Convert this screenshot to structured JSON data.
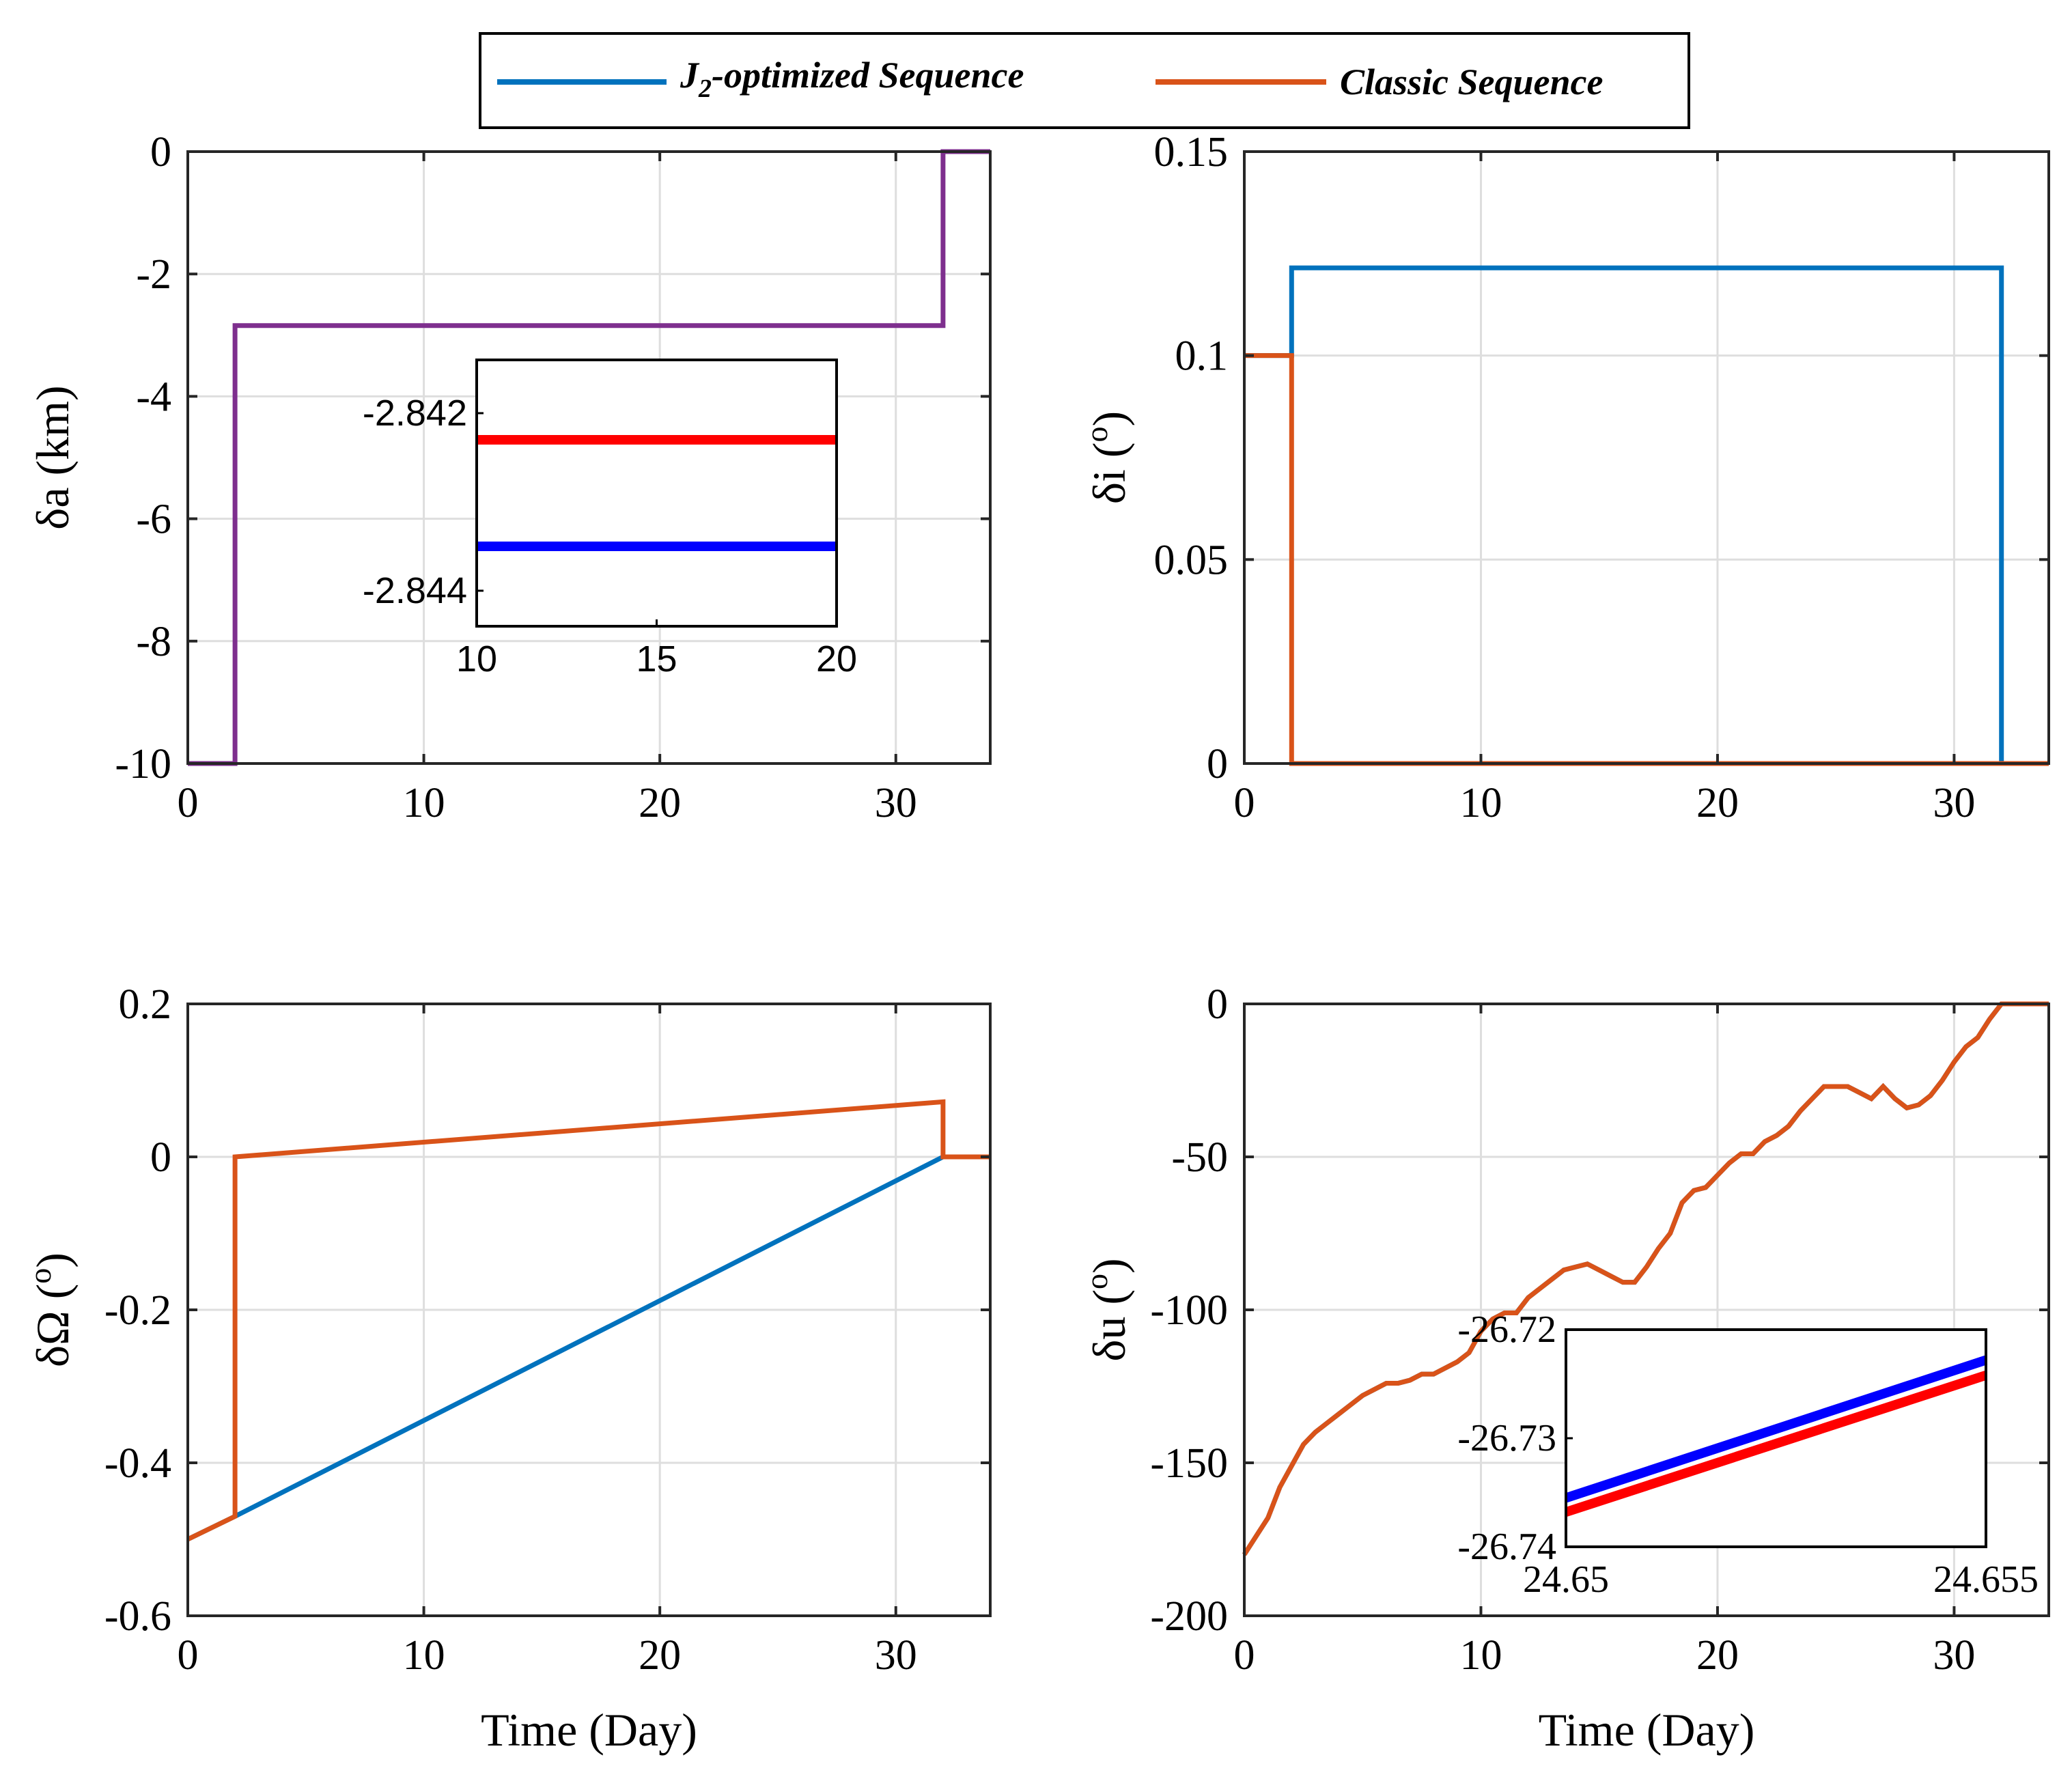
{
  "legend": {
    "entries": [
      {
        "name": "J2-optimized Sequence",
        "prefix": "J",
        "sub": "2",
        "suffix": "-optimized Sequence",
        "color": "#0072BD"
      },
      {
        "name": "Classic Sequence",
        "prefix": "Classic Sequence",
        "sub": "",
        "suffix": "",
        "color": "#D95319"
      }
    ]
  },
  "chart_data": [
    {
      "id": "da",
      "type": "line",
      "ylabel": "δa (km)",
      "xlabel": "",
      "xlim": [
        0,
        34
      ],
      "ylim": [
        -10,
        0
      ],
      "xticks": [
        0,
        10,
        20,
        30
      ],
      "yticks": [
        -10,
        -8,
        -6,
        -4,
        -2,
        0
      ],
      "series": [
        {
          "name": "J2-optimized Sequence",
          "color": "#7E2F8E",
          "x": [
            0,
            2,
            2,
            32,
            32,
            34
          ],
          "y": [
            -10,
            -10,
            -2.843,
            -2.843,
            0,
            0
          ]
        }
      ],
      "inset": {
        "xlim": [
          10,
          20
        ],
        "ylim": [
          -2.8444,
          -2.8414
        ],
        "xticks": [
          10,
          15,
          20
        ],
        "yticks": [
          -2.844,
          -2.842
        ],
        "ytick_labels": [
          "-2.844",
          "-2.842"
        ],
        "series": [
          {
            "name": "Classic Sequence",
            "color": "#FF0000",
            "x": [
              10,
              20
            ],
            "y": [
              -2.8423,
              -2.8423
            ]
          },
          {
            "name": "J2-optimized Sequence",
            "color": "#0000FF",
            "x": [
              10,
              20
            ],
            "y": [
              -2.8435,
              -2.8435
            ]
          }
        ]
      }
    },
    {
      "id": "di",
      "type": "line",
      "ylabel": "δi (o)",
      "xlabel": "",
      "xlim": [
        0,
        34
      ],
      "ylim": [
        0,
        0.15
      ],
      "xticks": [
        0,
        10,
        20,
        30
      ],
      "yticks": [
        0,
        0.05,
        0.1,
        0.15
      ],
      "ytick_labels": [
        "0",
        "0.05",
        "0.1",
        "0.15"
      ],
      "series": [
        {
          "name": "J2-optimized Sequence",
          "color": "#0072BD",
          "x": [
            0,
            2,
            2,
            32,
            32,
            34
          ],
          "y": [
            0.1,
            0.1,
            0.1215,
            0.1215,
            0,
            0
          ]
        },
        {
          "name": "Classic Sequence",
          "color": "#D95319",
          "x": [
            0,
            2,
            2,
            34
          ],
          "y": [
            0.1,
            0.1,
            0,
            0
          ]
        }
      ]
    },
    {
      "id": "dOmega",
      "type": "line",
      "ylabel": "δΩ (o)",
      "xlabel": "Time (Day)",
      "xlim": [
        0,
        34
      ],
      "ylim": [
        -0.6,
        0.2
      ],
      "xticks": [
        0,
        10,
        20,
        30
      ],
      "yticks": [
        -0.6,
        -0.4,
        -0.2,
        0,
        0.2
      ],
      "ytick_labels": [
        "-0.6",
        "-0.4",
        "-0.2",
        "0",
        "0.2"
      ],
      "series": [
        {
          "name": "J2-optimized Sequence",
          "color": "#0072BD",
          "x": [
            0,
            2,
            32,
            34
          ],
          "y": [
            -0.5,
            -0.47,
            0,
            0
          ]
        },
        {
          "name": "Classic Sequence",
          "color": "#D95319",
          "x": [
            0,
            2,
            2,
            32,
            32,
            34
          ],
          "y": [
            -0.5,
            -0.47,
            0,
            0.072,
            0,
            0
          ]
        }
      ]
    },
    {
      "id": "du",
      "type": "line",
      "ylabel": "δu (o)",
      "xlabel": "Time (Day)",
      "xlim": [
        0,
        34
      ],
      "ylim": [
        -200,
        0
      ],
      "xticks": [
        0,
        10,
        20,
        30
      ],
      "yticks": [
        -200,
        -150,
        -100,
        -50,
        0
      ],
      "ytick_labels": [
        "-200",
        "-150",
        "-100",
        "-50",
        "0"
      ],
      "series": [
        {
          "name": "J2-optimized Sequence",
          "color": "#0072BD",
          "x": [
            0,
            0.5,
            1,
            1.5,
            2,
            2.5,
            3,
            3.5,
            4,
            4.5,
            5,
            5.5,
            6,
            6.5,
            7,
            7.5,
            8,
            8.5,
            9,
            9.5,
            10,
            10.5,
            11,
            11.5,
            12,
            12.5,
            13,
            13.5,
            14,
            14.5,
            15,
            15.5,
            16,
            16.5,
            17,
            17.5,
            18,
            18.5,
            19,
            19.5,
            20,
            20.5,
            21,
            21.5,
            22,
            22.5,
            23,
            23.5,
            24,
            24.5,
            25,
            25.5,
            26,
            26.5,
            27,
            27.5,
            28,
            28.5,
            29,
            29.5,
            30,
            30.5,
            31,
            31.5,
            32,
            34
          ],
          "y": [
            -180,
            -174,
            -168,
            -158,
            -151,
            -144,
            -140,
            -137,
            -134,
            -131,
            -128,
            -126,
            -124,
            -124,
            -123,
            -121,
            -121,
            -119,
            -117,
            -114,
            -107,
            -103,
            -101,
            -101,
            -96,
            -93,
            -90,
            -87,
            -86,
            -85,
            -87,
            -89,
            -91,
            -91,
            -86,
            -80,
            -75,
            -65,
            -61,
            -60,
            -56,
            -52,
            -49,
            -49,
            -45,
            -43,
            -40,
            -35,
            -31,
            -27,
            -27,
            -27,
            -29,
            -31,
            -27,
            -31,
            -34,
            -33,
            -30,
            -25,
            -19,
            -14,
            -11,
            -5,
            0,
            0
          ]
        },
        {
          "name": "Classic Sequence",
          "color": "#D95319",
          "x": [
            0,
            0.5,
            1,
            1.5,
            2,
            2.5,
            3,
            3.5,
            4,
            4.5,
            5,
            5.5,
            6,
            6.5,
            7,
            7.5,
            8,
            8.5,
            9,
            9.5,
            10,
            10.5,
            11,
            11.5,
            12,
            12.5,
            13,
            13.5,
            14,
            14.5,
            15,
            15.5,
            16,
            16.5,
            17,
            17.5,
            18,
            18.5,
            19,
            19.5,
            20,
            20.5,
            21,
            21.5,
            22,
            22.5,
            23,
            23.5,
            24,
            24.5,
            25,
            25.5,
            26,
            26.5,
            27,
            27.5,
            28,
            28.5,
            29,
            29.5,
            30,
            30.5,
            31,
            31.5,
            32,
            34
          ],
          "y": [
            -180,
            -174,
            -168,
            -158,
            -151,
            -144,
            -140,
            -137,
            -134,
            -131,
            -128,
            -126,
            -124,
            -124,
            -123,
            -121,
            -121,
            -119,
            -117,
            -114,
            -107,
            -103,
            -101,
            -101,
            -96,
            -93,
            -90,
            -87,
            -86,
            -85,
            -87,
            -89,
            -91,
            -91,
            -86,
            -80,
            -75,
            -65,
            -61,
            -60,
            -56,
            -52,
            -49,
            -49,
            -45,
            -43,
            -40,
            -35,
            -31,
            -27,
            -27,
            -27,
            -29,
            -31,
            -27,
            -31,
            -34,
            -33,
            -30,
            -25,
            -19,
            -14,
            -11,
            -5,
            0,
            0
          ]
        }
      ],
      "inset": {
        "xlim": [
          24.65,
          24.655
        ],
        "ylim": [
          -26.74,
          -26.72
        ],
        "xticks": [
          24.65,
          24.655
        ],
        "xtick_labels": [
          "24.65",
          "24.655"
        ],
        "yticks": [
          -26.74,
          -26.73,
          -26.72
        ],
        "ytick_labels": [
          "-26.74",
          "-26.73",
          "-26.72"
        ],
        "series": [
          {
            "name": "J2-optimized Sequence",
            "color": "#0000FF",
            "x": [
              24.65,
              24.655
            ],
            "y": [
              -26.7355,
              -26.7228
            ]
          },
          {
            "name": "Classic Sequence",
            "color": "#FF0000",
            "x": [
              24.65,
              24.655
            ],
            "y": [
              -26.7368,
              -26.7242
            ]
          }
        ]
      }
    }
  ]
}
